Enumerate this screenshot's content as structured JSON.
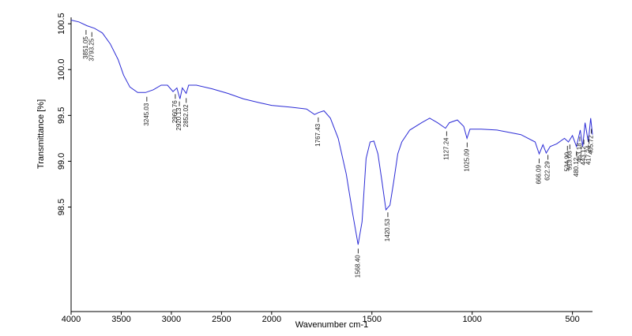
{
  "chart_data": {
    "type": "line",
    "xlabel": "Wavenumber cm-1",
    "ylabel": "Transmittance [%]",
    "color": "#2b2bd6",
    "xlim": [
      4000,
      400
    ],
    "xbreak": 2000,
    "xticks": [
      4000,
      3500,
      3000,
      2500,
      2000,
      1500,
      1000,
      500
    ],
    "ylim": [
      97.36,
      100.57
    ],
    "yticks": [
      98.5,
      {
        "value": 99.0,
        "label": "99.0"
      },
      99.5,
      {
        "value": 100.0,
        "label": "100.0"
      },
      100.5
    ],
    "x": [
      4000,
      3922,
      3844,
      3766,
      3688,
      3609,
      3531,
      3477,
      3414,
      3336,
      3258,
      3180,
      3102,
      3039,
      2984,
      2945,
      2914,
      2891,
      2852,
      2828,
      2750,
      2594,
      2438,
      2281,
      2125,
      2000,
      1905,
      1826,
      1786,
      1767,
      1739,
      1707,
      1668,
      1628,
      1596,
      1569,
      1549,
      1529,
      1509,
      1490,
      1470,
      1450,
      1430,
      1410,
      1391,
      1371,
      1351,
      1311,
      1252,
      1212,
      1173,
      1133,
      1114,
      1074,
      1042,
      1026,
      1011,
      955,
      876,
      757,
      686,
      666,
      647,
      631,
      611,
      579,
      540,
      520,
      500,
      480,
      461,
      449,
      437,
      421,
      409,
      400
    ],
    "values": [
      100.54,
      100.52,
      100.48,
      100.45,
      100.4,
      100.28,
      100.11,
      99.94,
      99.81,
      99.75,
      99.75,
      99.78,
      99.83,
      99.83,
      99.76,
      99.8,
      99.68,
      99.8,
      99.74,
      99.83,
      99.83,
      99.79,
      99.74,
      99.68,
      99.64,
      99.61,
      99.59,
      99.57,
      99.51,
      99.53,
      99.55,
      99.47,
      99.25,
      98.86,
      98.43,
      98.09,
      98.34,
      99.03,
      99.21,
      99.22,
      99.08,
      98.78,
      98.47,
      98.52,
      98.78,
      99.08,
      99.21,
      99.34,
      99.42,
      99.47,
      99.42,
      99.36,
      99.42,
      99.45,
      99.38,
      99.25,
      99.35,
      99.35,
      99.34,
      99.29,
      99.21,
      99.08,
      99.18,
      99.09,
      99.16,
      99.19,
      99.25,
      99.21,
      99.28,
      99.16,
      99.34,
      99.16,
      99.42,
      99.21,
      99.47,
      99.29
    ],
    "peaks": [
      {
        "value": 3851.05,
        "label": "3851.05"
      },
      {
        "value": 3793.25,
        "label": "3793.25"
      },
      {
        "value": 3245.03,
        "label": "3245.03"
      },
      {
        "value": 2960.76,
        "label": "2960.76"
      },
      {
        "value": 2920.13,
        "label": "2920.13"
      },
      {
        "value": 2852.02,
        "label": "2852.02"
      },
      {
        "value": 1767.43,
        "label": "1767.43"
      },
      {
        "value": 1568.4,
        "label": "1568.40"
      },
      {
        "value": 1420.53,
        "label": "1420.53"
      },
      {
        "value": 1127.24,
        "label": "1127.24"
      },
      {
        "value": 1025.09,
        "label": "1025.09"
      },
      {
        "value": 666.09,
        "label": "666.09"
      },
      {
        "value": 622.29,
        "label": "622.29"
      },
      {
        "value": 524.9,
        "label": "524.90"
      },
      {
        "value": 513.03,
        "label": "513.03"
      },
      {
        "value": 480.12,
        "label": "480.12"
      },
      {
        "value": 463.18,
        "label": "463.18"
      },
      {
        "value": 443.12,
        "label": "443.12"
      },
      {
        "value": 417.24,
        "label": "417.24"
      },
      {
        "value": 405.72,
        "label": "405.72"
      }
    ]
  }
}
